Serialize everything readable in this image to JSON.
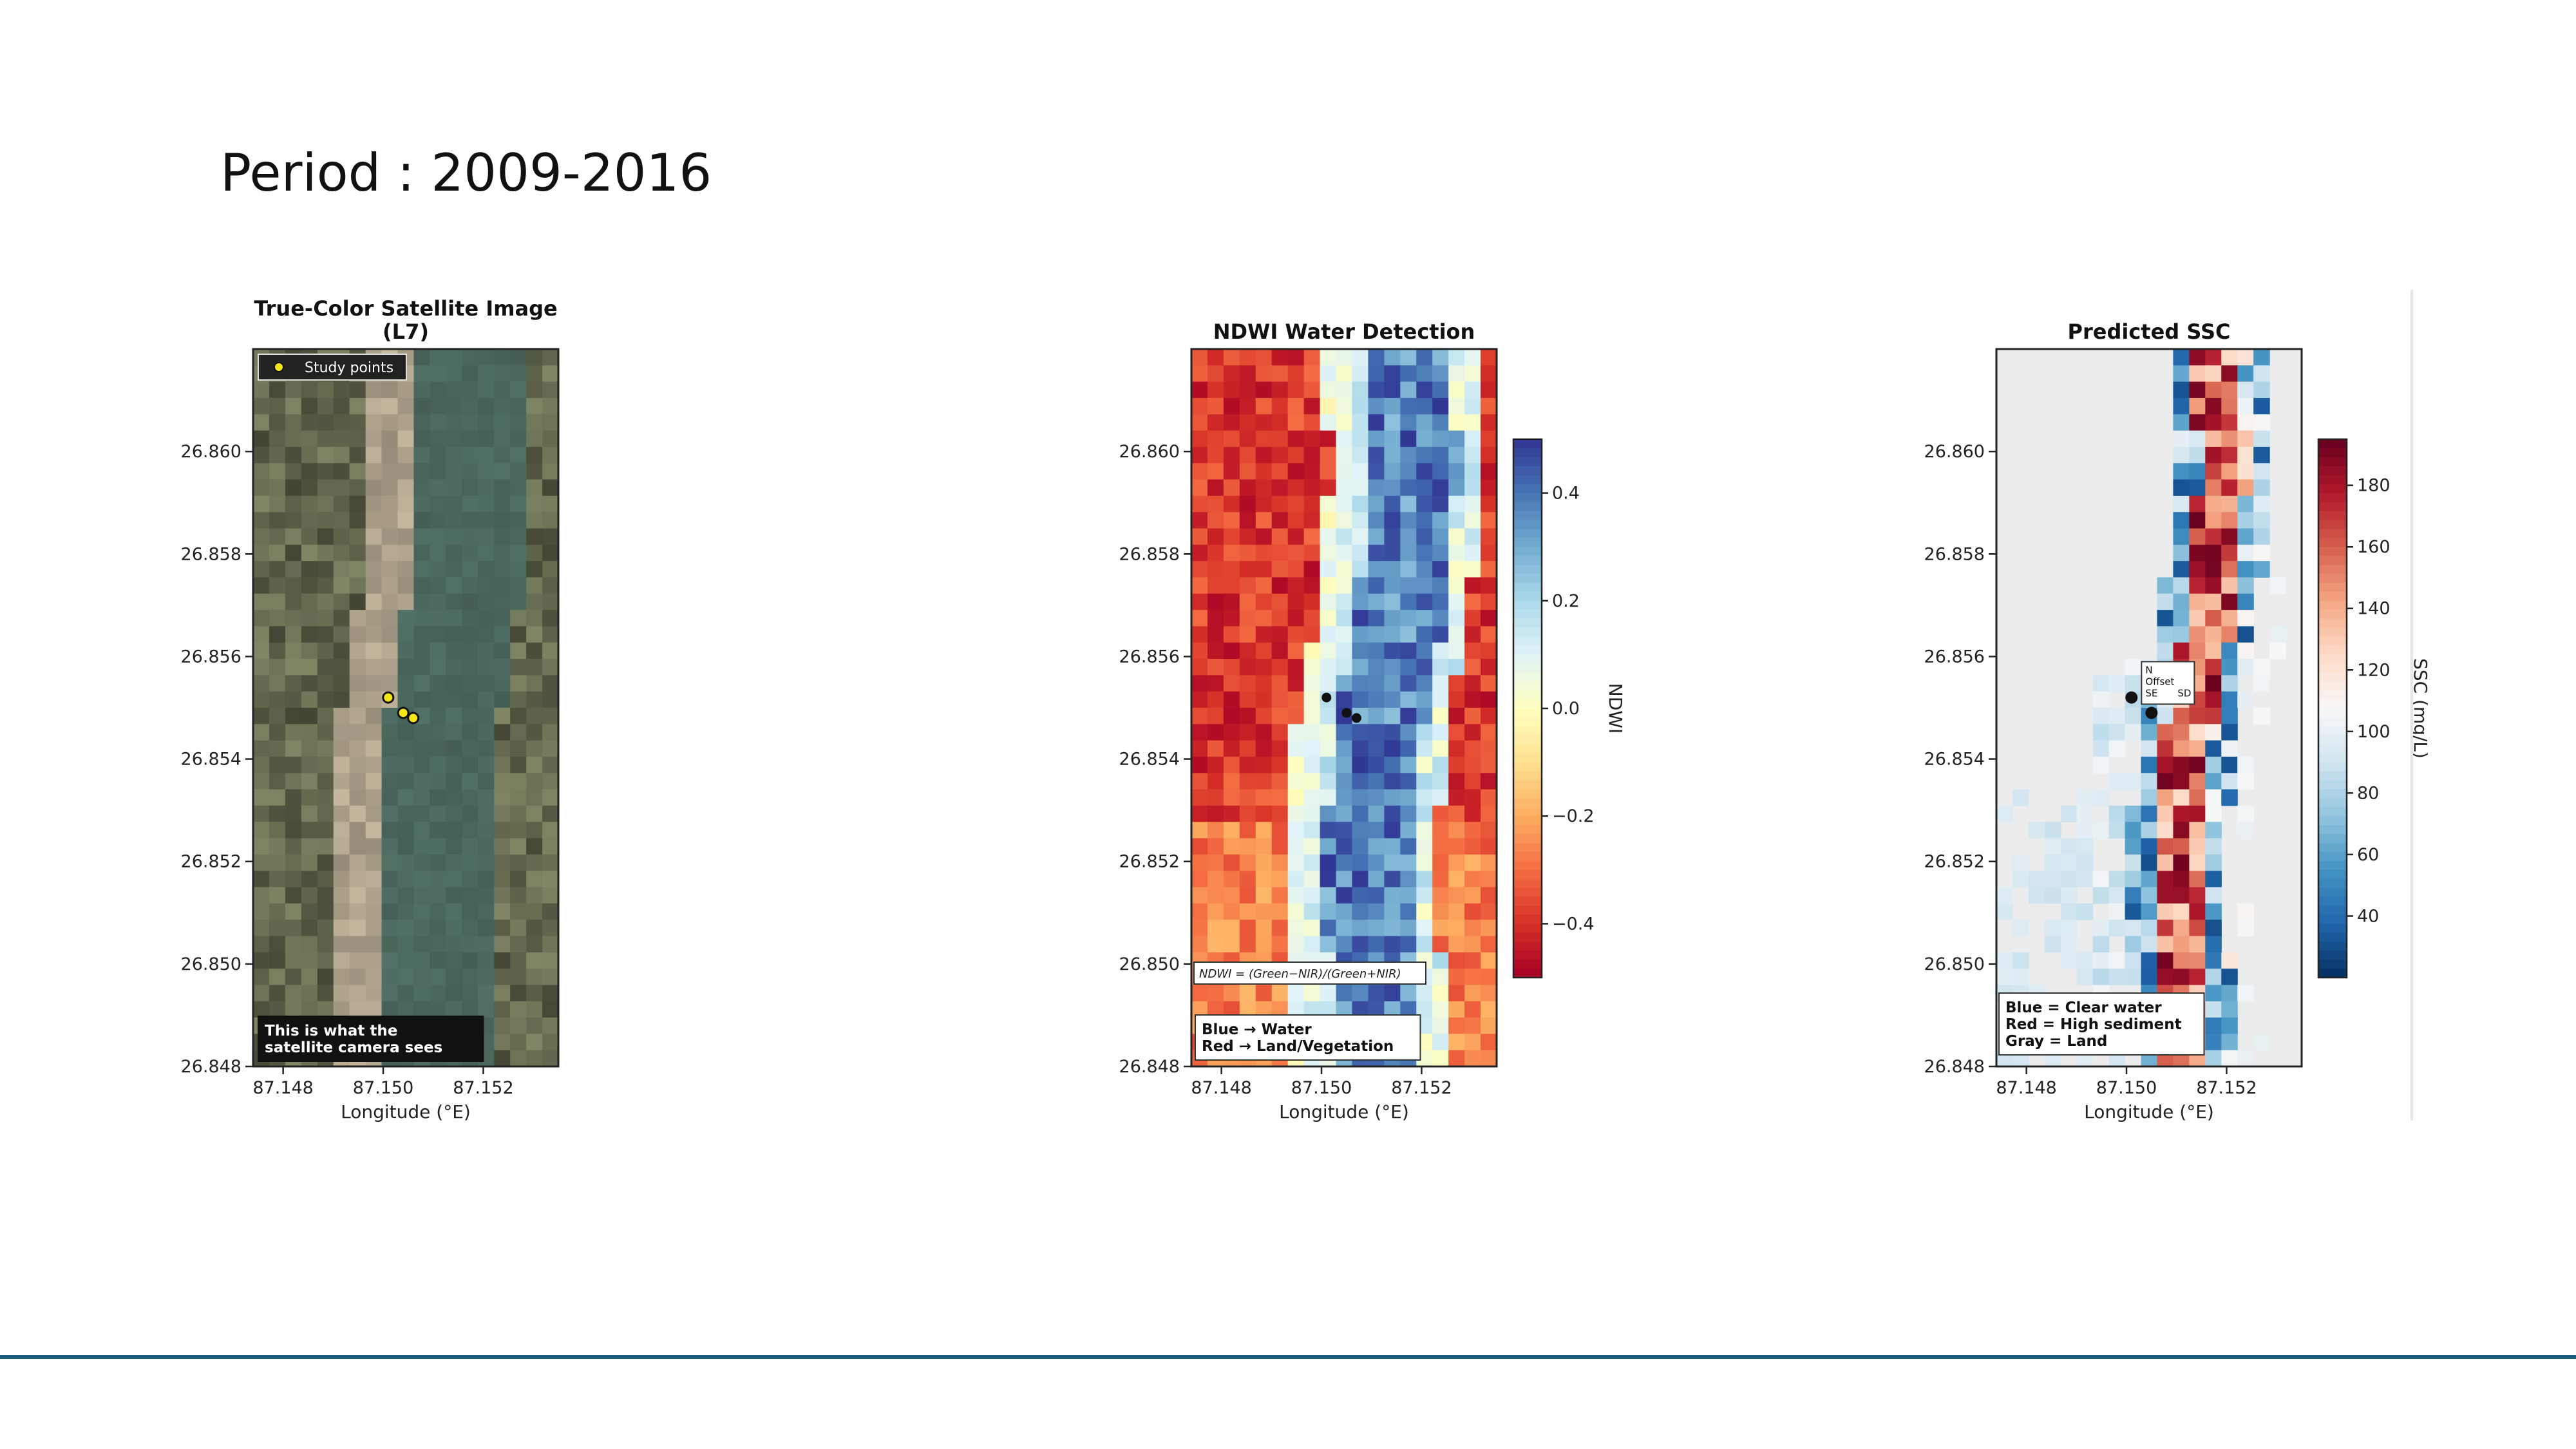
{
  "slide": {
    "period_label": "Period : 2009-2016"
  },
  "chart_data": [
    {
      "type": "heatmap",
      "title": "True-Color Satellite Image",
      "subtitle": "(L7)",
      "xlabel": "Longitude (°E)",
      "ylabel": "",
      "xlim": [
        87.1474,
        87.1535
      ],
      "ylim": [
        26.848,
        26.862
      ],
      "xticks": [
        "87.148",
        "87.150",
        "87.152"
      ],
      "yticks": [
        "26.848",
        "26.850",
        "26.852",
        "26.854",
        "26.856",
        "26.858",
        "26.860"
      ],
      "legend": {
        "entries": [
          "Study points"
        ],
        "placement": "top-left"
      },
      "points": [
        {
          "lon": 87.1501,
          "lat": 26.8552
        },
        {
          "lon": 87.1504,
          "lat": 26.8549
        },
        {
          "lon": 87.1506,
          "lat": 26.8548
        }
      ],
      "annotation": [
        "This is what the",
        "satellite camera sees"
      ]
    },
    {
      "type": "heatmap",
      "title": "NDWI Water Detection",
      "xlabel": "Longitude (°E)",
      "ylabel": "",
      "xlim": [
        87.1474,
        87.1535
      ],
      "ylim": [
        26.848,
        26.862
      ],
      "xticks": [
        "87.148",
        "87.150",
        "87.152"
      ],
      "yticks": [
        "26.848",
        "26.850",
        "26.852",
        "26.854",
        "26.856",
        "26.858",
        "26.860"
      ],
      "colorbar": {
        "label": "NDWI",
        "range": [
          -0.5,
          0.5
        ],
        "ticks": [
          -0.4,
          -0.2,
          0.0,
          0.2,
          0.4
        ],
        "tick_labels": [
          "−0.4",
          "−0.2",
          "0.0",
          "0.2",
          "0.4"
        ],
        "colormap": "RdYlBu"
      },
      "points": [
        {
          "lon": 87.1501,
          "lat": 26.8552
        },
        {
          "lon": 87.1505,
          "lat": 26.8549
        },
        {
          "lon": 87.1507,
          "lat": 26.8548
        }
      ],
      "formula": "NDWI = (Green−NIR)/(Green+NIR)",
      "annotation": [
        "Blue → Water",
        "Red → Land/Vegetation"
      ]
    },
    {
      "type": "heatmap",
      "title": "Predicted SSC",
      "xlabel": "Longitude (°E)",
      "ylabel": "",
      "xlim": [
        87.1474,
        87.1535
      ],
      "ylim": [
        26.848,
        26.862
      ],
      "xticks": [
        "87.148",
        "87.150",
        "87.152"
      ],
      "yticks": [
        "26.848",
        "26.850",
        "26.852",
        "26.854",
        "26.856",
        "26.858",
        "26.860"
      ],
      "colorbar": {
        "label": "SSC (mg/L)",
        "range": [
          20,
          195
        ],
        "ticks": [
          40,
          60,
          80,
          100,
          120,
          140,
          160,
          180
        ],
        "tick_labels": [
          "40",
          "60",
          "80",
          "100",
          "120",
          "140",
          "160",
          "180"
        ],
        "colormap": "RdBu_r"
      },
      "points": [
        {
          "lon": 87.1501,
          "lat": 26.8552
        },
        {
          "lon": 87.1505,
          "lat": 26.8549
        }
      ],
      "point_labels": [
        "N",
        "Offset",
        "SE",
        "SD"
      ],
      "annotation": [
        "Blue = Clear water",
        "Red = High sediment",
        "Gray = Land"
      ]
    }
  ]
}
